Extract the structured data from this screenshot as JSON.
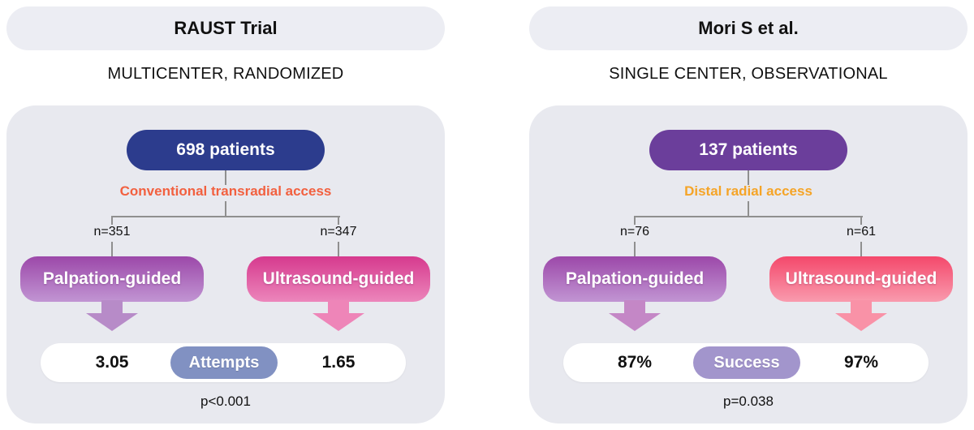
{
  "panels": [
    {
      "title": "RAUST Trial",
      "subtitle": "MULTICENTER, RANDOMIZED",
      "patients": "698 patients",
      "access": "Conventional transradial access",
      "arms": [
        {
          "n": "n=351",
          "label": "Palpation-guided"
        },
        {
          "n": "n=347",
          "label": "Ultrasound-guided"
        }
      ],
      "outcome": {
        "left_value": "3.05",
        "metric": "Attempts",
        "right_value": "1.65",
        "p_value": "p<0.001"
      }
    },
    {
      "title": "Mori S et al.",
      "subtitle": "SINGLE CENTER, OBSERVATIONAL",
      "patients": "137 patients",
      "access": "Distal radial access",
      "arms": [
        {
          "n": "n=76",
          "label": "Palpation-guided"
        },
        {
          "n": "n=61",
          "label": "Ultrasound-guided"
        }
      ],
      "outcome": {
        "left_value": "87%",
        "metric": "Success",
        "right_value": "97%",
        "p_value": "p=0.038"
      }
    }
  ],
  "colors": {
    "title-pill-bg": "#ecedf3",
    "card-bg": "#e8e9ef",
    "line": "#8f8f8f",
    "text": "#111111",
    "p0-patients-bg": "#2c3c8d",
    "p1-patients-bg": "#6b3e9b",
    "p0-access-color": "#f2603f",
    "p1-access-color": "#f5a427",
    "palp-grad-top": "#9c48a9",
    "palp-grad-bottom": "#c195d3",
    "p0-us-grad-top": "#d63a8e",
    "p0-us-grad-bottom": "#ec86bb",
    "p1-us-grad-top": "#f4486b",
    "p1-us-grad-bottom": "#f99bae",
    "p0-palp-arrow": "#b78bc8",
    "p0-us-arrow": "#ee85b8",
    "p1-palp-arrow": "#c487c6",
    "p1-us-arrow": "#f992a7",
    "p0-metric-bg": "#8191c2",
    "p1-metric-bg": "#a295cc"
  }
}
